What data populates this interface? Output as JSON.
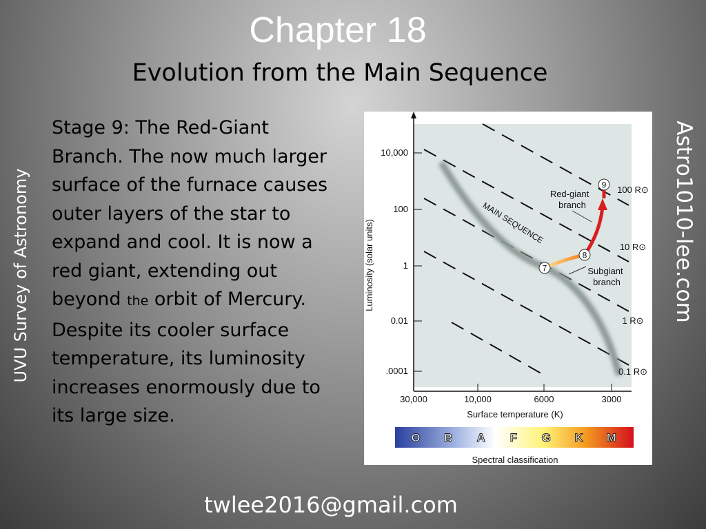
{
  "header": {
    "title": "Chapter 18",
    "subtitle": "Evolution from the Main Sequence"
  },
  "body": {
    "lines": [
      [
        "Stage 9: The Red-Giant"
      ],
      [
        "Branch. The now much larger"
      ],
      [
        "surface of the furnace causes"
      ],
      [
        "outer layers of the star to"
      ],
      [
        "expand and cool. It is now a"
      ],
      [
        "red giant, extending out"
      ],
      [
        "beyond ",
        "the",
        " orbit of Mercury."
      ],
      [
        "Despite its cooler surface"
      ],
      [
        "temperature, its luminosity"
      ],
      [
        "increases enormously due to"
      ],
      [
        "its large size."
      ]
    ]
  },
  "side_left": "UVU  Survey of Astronomy",
  "side_right": "Astro1010-lee.com",
  "footer": "twlee2016@gmail.com",
  "figure": {
    "y_axis_label": "Luminosity (solar units)",
    "y_ticks": [
      "10,000",
      "100",
      "1",
      "0.01",
      ".0001"
    ],
    "x_ticks": [
      "30,000",
      "10,000",
      "6000",
      "3000"
    ],
    "x_axis_label": "Surface temperature (K)",
    "spectral_classes": [
      "O",
      "B",
      "A",
      "F",
      "G",
      "K",
      "M"
    ],
    "spectral_label": "Spectral classification",
    "radius_labels": [
      "100 R⊙",
      "10 R⊙",
      "1 R⊙",
      "0.1 R⊙"
    ],
    "main_sequence_label": "MAIN SEQUENCE",
    "points": [
      "7",
      "8",
      "9"
    ],
    "red_giant_label": [
      "Red-giant",
      "branch"
    ],
    "subgiant_label": [
      "Subgiant",
      "branch"
    ]
  }
}
